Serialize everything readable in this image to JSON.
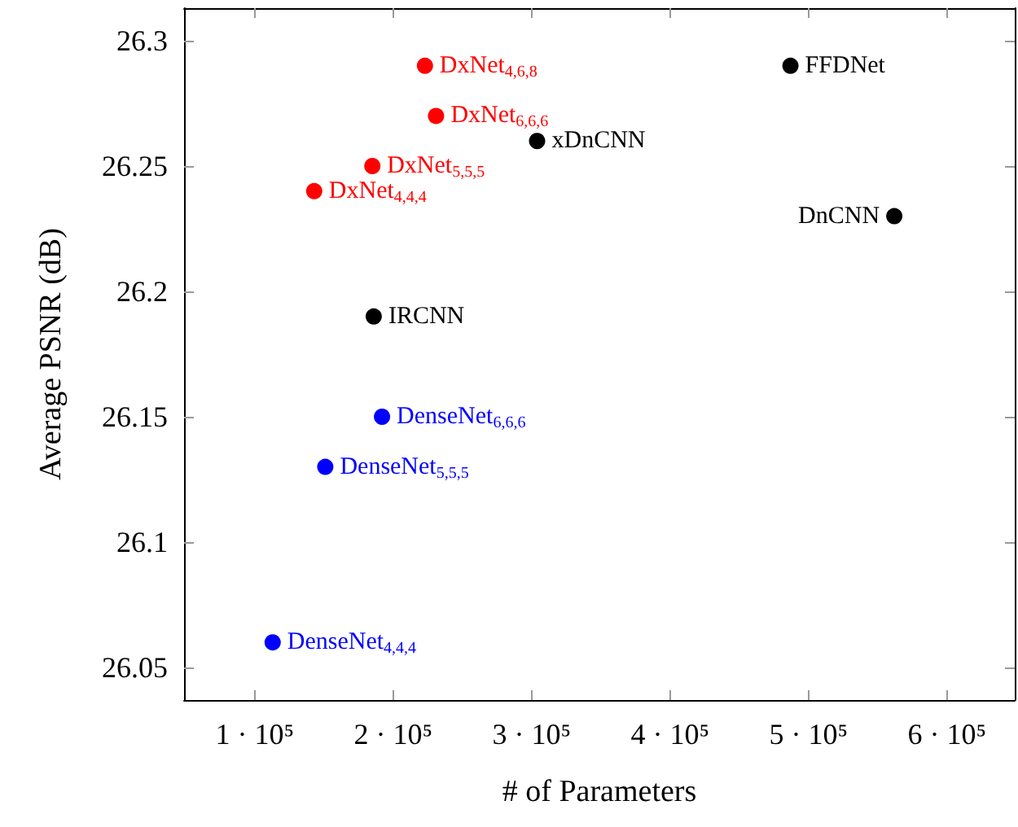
{
  "chart_data": {
    "type": "scatter",
    "xlabel": "# of Parameters",
    "ylabel": "Average PSNR (dB)",
    "series": [
      {
        "color": "#ff0000",
        "x": [
          223000,
          231000,
          185000,
          143000
        ],
        "values": [
          26.29,
          26.27,
          26.25,
          26.24
        ]
      },
      {
        "color": "#000000",
        "x": [
          304000,
          487000,
          562000,
          186000
        ],
        "values": [
          26.26,
          26.29,
          26.23,
          26.19
        ]
      },
      {
        "color": "#0000ff",
        "x": [
          192000,
          151000,
          113000
        ],
        "values": [
          26.15,
          26.13,
          26.06
        ]
      }
    ],
    "annotations": [
      {
        "text": "DxNet$_{4,6,8}$",
        "x": 223000,
        "y": 26.29
      },
      {
        "text": "DxNet$_{6,6,6}$",
        "x": 231000,
        "y": 26.27
      },
      {
        "text": "DxNet$_{5,5,5}$",
        "x": 185000,
        "y": 26.25
      },
      {
        "text": "DxNet$_{4,4,4}$",
        "x": 143000,
        "y": 26.24
      },
      {
        "text": "xDnCNN",
        "x": 304000,
        "y": 26.26
      },
      {
        "text": "FFDNet",
        "x": 487000,
        "y": 26.29
      },
      {
        "text": "DnCNN",
        "x": 562000,
        "y": 26.23
      },
      {
        "text": "IRCNN",
        "x": 186000,
        "y": 26.19
      },
      {
        "text": "DenseNet$_{6,6,6}$",
        "x": 192000,
        "y": 26.15
      },
      {
        "text": "DenseNet$_{5,5,5}$",
        "x": 151000,
        "y": 26.13
      },
      {
        "text": "DenseNet$_{4,4,4}$",
        "x": 113000,
        "y": 26.06
      }
    ],
    "xlim": [
      49000,
      649000
    ],
    "xticks": [
      {
        "value": 100000,
        "label": "1 · 10⁵"
      },
      {
        "value": 200000,
        "label": "2 · 10⁵"
      },
      {
        "value": 300000,
        "label": "3 · 10⁵"
      },
      {
        "value": 400000,
        "label": "4 · 10⁵"
      },
      {
        "value": 500000,
        "label": "5 · 10⁵"
      },
      {
        "value": 600000,
        "label": "6 · 10⁵"
      }
    ],
    "ylim": [
      26.037,
      26.313
    ],
    "yticks": [
      26.05,
      26.1,
      26.15,
      26.2,
      26.25,
      26.3
    ],
    "grid": false,
    "marker": "circle"
  }
}
